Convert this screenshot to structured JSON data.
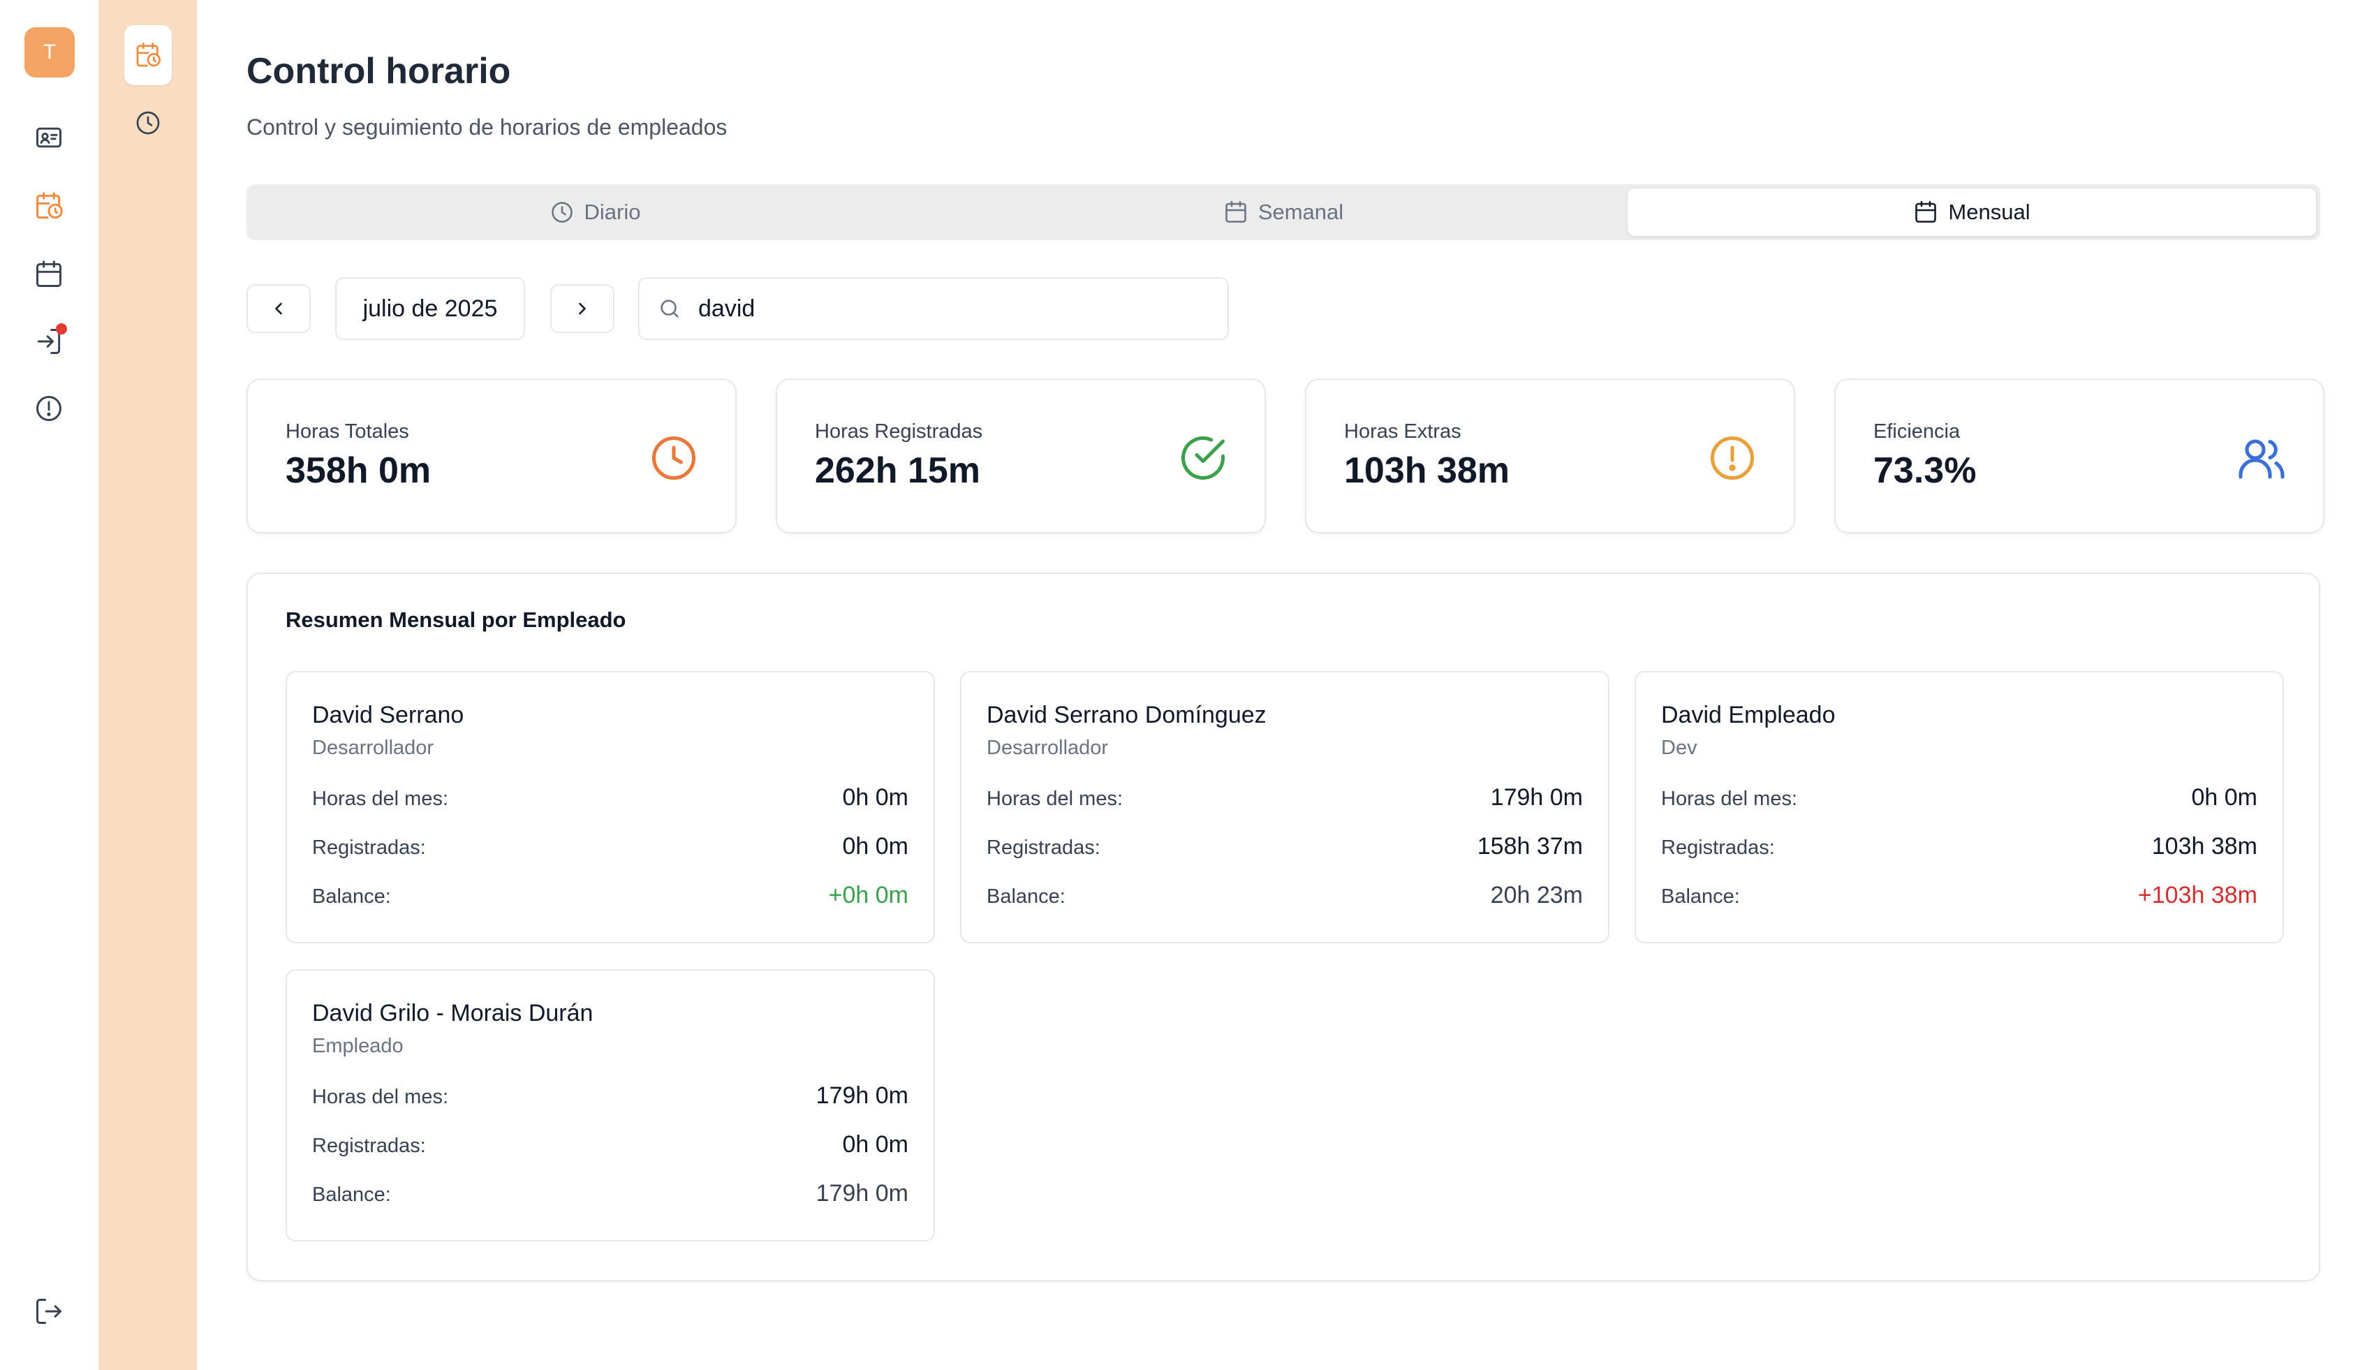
{
  "user": {
    "avatar_initial": "T"
  },
  "rail": {
    "items": [
      {
        "icon": "id-card-icon"
      },
      {
        "icon": "calendar-clock-icon",
        "active": true
      },
      {
        "icon": "calendar-icon"
      },
      {
        "icon": "sign-in-icon",
        "notification": true
      },
      {
        "icon": "alert-circle-icon"
      }
    ],
    "logout_icon": "logout-icon"
  },
  "subpanel": {
    "items": [
      {
        "icon": "calendar-clock-icon",
        "active": true
      },
      {
        "icon": "clock-icon"
      }
    ]
  },
  "header": {
    "title": "Control horario",
    "subtitle": "Control y seguimiento de horarios de empleados"
  },
  "tabs": [
    {
      "label": "Diario",
      "icon": "clock-icon",
      "active": false
    },
    {
      "label": "Semanal",
      "icon": "calendar-icon",
      "active": false
    },
    {
      "label": "Mensual",
      "icon": "calendar-icon",
      "active": true
    }
  ],
  "period": {
    "label": "julio de 2025"
  },
  "search": {
    "value": "david",
    "placeholder": ""
  },
  "stats": [
    {
      "label": "Horas Totales",
      "value": "358h 0m",
      "icon": "clock-icon",
      "color": "#e8793a"
    },
    {
      "label": "Horas Registradas",
      "value": "262h 15m",
      "icon": "check-circle-icon",
      "color": "#3aa04a"
    },
    {
      "label": "Horas Extras",
      "value": "103h 38m",
      "icon": "alert-circle-icon",
      "color": "#e8a13a"
    },
    {
      "label": "Eficiencia",
      "value": "73.3%",
      "icon": "users-icon",
      "color": "#3a6fd8"
    }
  ],
  "summary": {
    "title": "Resumen Mensual por Empleado",
    "labels": {
      "hours": "Horas del mes:",
      "registered": "Registradas:",
      "balance": "Balance:"
    },
    "employees": [
      {
        "name": "David Serrano",
        "role": "Desarrollador",
        "hours": "0h 0m",
        "registered": "0h 0m",
        "balance": "+0h 0m",
        "balance_color": "#3aa04a"
      },
      {
        "name": "David Serrano Domínguez",
        "role": "Desarrollador",
        "hours": "179h 0m",
        "registered": "158h 37m",
        "balance": "20h 23m",
        "balance_color": "#374151"
      },
      {
        "name": "David Empleado",
        "role": "Dev",
        "hours": "0h 0m",
        "registered": "103h 38m",
        "balance": "+103h 38m",
        "balance_color": "#d32f2f"
      },
      {
        "name": "David Grilo - Morais Durán",
        "role": "Empleado",
        "hours": "179h 0m",
        "registered": "0h 0m",
        "balance": "179h 0m",
        "balance_color": "#374151"
      }
    ]
  },
  "colors": {
    "accent": "#f4a462",
    "panel": "#f8ddc2"
  }
}
